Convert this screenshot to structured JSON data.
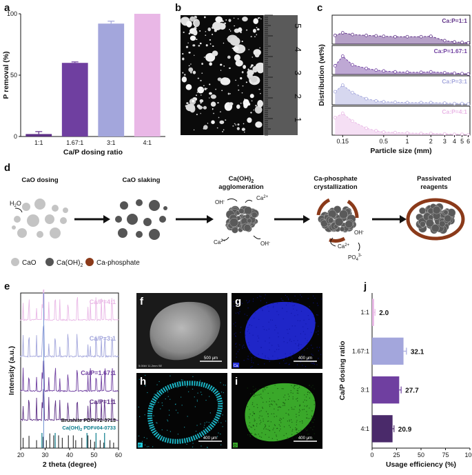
{
  "panels": {
    "a": {
      "letter": "a"
    },
    "b": {
      "letter": "b"
    },
    "c": {
      "letter": "c"
    },
    "d": {
      "letter": "d"
    },
    "e": {
      "letter": "e"
    },
    "f": {
      "letter": "f"
    },
    "g": {
      "letter": "g"
    },
    "h": {
      "letter": "h"
    },
    "i": {
      "letter": "i"
    },
    "j": {
      "letter": "j"
    }
  },
  "colors": {
    "c1": "#5d2f86",
    "c167": "#6f3fa0",
    "c3": "#a3a6dc",
    "c4": "#e9b7e6",
    "dark": "#4a2a6a",
    "brown": "#8b3a1a"
  },
  "chart_data": [
    {
      "id": "a",
      "type": "bar",
      "categories": [
        "1:1",
        "1.67:1",
        "3:1",
        "4:1"
      ],
      "values": [
        2,
        60,
        92,
        100
      ],
      "errors": [
        2,
        0.8,
        2,
        0
      ],
      "xlabel": "Ca/P dosing ratio",
      "ylabel": "P removal (%)",
      "ylim": [
        0,
        100
      ],
      "yticks": [
        "0",
        "50",
        "100"
      ]
    },
    {
      "id": "c",
      "type": "area",
      "xlabel": "Particle size (mm)",
      "ylabel": "Distribution (wt%)",
      "xticks": [
        "0.15",
        "0.5",
        "1",
        "2",
        "3",
        "4",
        "5",
        "6"
      ],
      "xtick_values": [
        0.15,
        0.5,
        1,
        2,
        3,
        4,
        5,
        6
      ],
      "xscale": "log",
      "x": [
        0.12,
        0.15,
        0.2,
        0.3,
        0.4,
        0.5,
        0.7,
        1,
        1.5,
        2,
        3,
        4,
        5,
        6
      ],
      "series": [
        {
          "name": "Ca:P=1:1",
          "values": [
            20,
            26,
            22,
            20,
            19,
            18,
            17,
            17,
            17,
            18,
            8,
            5,
            4,
            3
          ]
        },
        {
          "name": "Ca:P=1.67:1",
          "values": [
            20,
            42,
            22,
            14,
            10,
            8,
            6,
            5,
            5,
            6,
            4,
            3,
            2,
            1
          ]
        },
        {
          "name": "Ca:P=3:1",
          "values": [
            30,
            45,
            28,
            14,
            9,
            7,
            6,
            5,
            5,
            5,
            4,
            3,
            3,
            2
          ]
        },
        {
          "name": "Ca:P=4:1",
          "values": [
            40,
            50,
            32,
            16,
            10,
            7,
            6,
            5,
            4,
            4,
            3,
            2,
            2,
            1
          ]
        }
      ]
    },
    {
      "id": "e",
      "type": "line",
      "xlabel": "2 theta (degree)",
      "ylabel": "Intensity (a.u.)",
      "xlim": [
        20,
        60
      ],
      "xticks": [
        "20",
        "30",
        "40",
        "50",
        "60"
      ],
      "series": [
        {
          "name": "Ca/P=4:1"
        },
        {
          "name": "Ca/P=3:1"
        },
        {
          "name": "Ca/P=1.67:1"
        },
        {
          "name": "Ca/P=1:1"
        }
      ],
      "references": [
        "Brushite PDF#72-0713",
        "PDF#04-0733"
      ],
      "reference_formula": {
        "main": "Ca(OH)",
        "sub": "2"
      }
    },
    {
      "id": "j",
      "type": "bar",
      "orientation": "horizontal",
      "categories": [
        "1:1",
        "1.67:1",
        "3:1",
        "4:1"
      ],
      "values": [
        2.0,
        32.1,
        27.7,
        20.9
      ],
      "value_labels": [
        "2.0",
        "32.1",
        "27.7",
        "20.9"
      ],
      "errors": [
        1,
        3,
        2,
        1.5
      ],
      "xlabel": "Usage efficiency (%)",
      "ylabel": "Ca/P dosing ratio",
      "xlim": [
        0,
        100
      ],
      "xticks": [
        "0",
        "25",
        "50",
        "75",
        "100"
      ]
    }
  ],
  "ruler": {
    "marks": [
      "1",
      "2",
      "3",
      "4",
      "5"
    ]
  },
  "scheme": {
    "steps": [
      {
        "label": "CaO dosing"
      },
      {
        "label": "CaO slaking"
      },
      {
        "label_main": "Ca(OH)",
        "label_sub": "2",
        "label_line2": "agglomeration"
      },
      {
        "label": "Ca-phosphate",
        "label_line2": "crystallization"
      },
      {
        "label": "Passivated",
        "label_line2": "reagents"
      }
    ],
    "ions": {
      "h2o_main": "H",
      "h2o_sub": "2",
      "h2o_end": "O",
      "oh": "OH",
      "ca": "Ca",
      "charge2": "2+",
      "minus": "-",
      "po4_main": "PO",
      "po4_sub": "4",
      "po4_sup": "3-"
    },
    "legend": [
      {
        "label": "CaO"
      },
      {
        "label_main": "Ca(OH)",
        "label_sub": "2"
      },
      {
        "label": "Ca-phosphate"
      }
    ]
  },
  "micrographs": {
    "f": {
      "scale": "500 μm",
      "meta": "5.00kV 11.2mm SE"
    },
    "g": {
      "scale": "400 μm",
      "element": "Ca"
    },
    "h": {
      "scale": "400 μm",
      "element": "P"
    },
    "i": {
      "scale": "400 μm",
      "element": "O"
    }
  }
}
